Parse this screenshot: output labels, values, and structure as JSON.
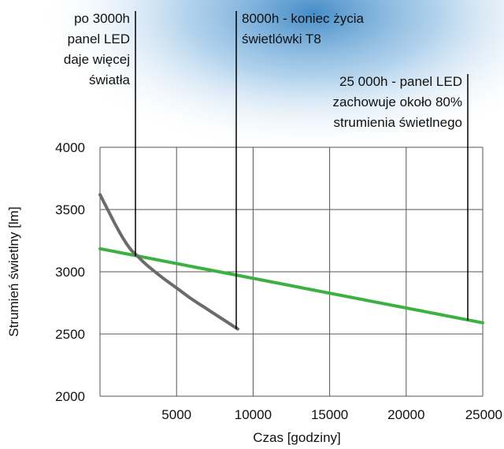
{
  "colors": {
    "background_accent": "#4a90c8",
    "grid": "#555555",
    "led_panel_line": "#3cb043",
    "t8_line": "#6b6b6b"
  },
  "chart_data": {
    "type": "line",
    "title": "",
    "xlabel": "Czas [godziny]",
    "ylabel": "Strumień świetlny [lm]",
    "xlim": [
      0,
      25000
    ],
    "ylim": [
      2000,
      4000
    ],
    "x_ticks": [
      5000,
      10000,
      15000,
      20000,
      25000
    ],
    "y_ticks": [
      2000,
      2500,
      3000,
      3500,
      4000
    ],
    "grid": true,
    "series": [
      {
        "name": "",
        "color": "#3cb043",
        "x": [
          0,
          25000
        ],
        "y": [
          3185,
          2590
        ]
      },
      {
        "name": "",
        "color": "#6b6b6b",
        "x": [
          0,
          500,
          1000,
          1500,
          2000,
          2500,
          3000,
          4000,
          5000,
          6000,
          7000,
          8000,
          9000
        ],
        "y": [
          3620,
          3500,
          3380,
          3270,
          3180,
          3120,
          3060,
          2960,
          2870,
          2780,
          2700,
          2620,
          2540
        ]
      }
    ],
    "annotations": [
      {
        "x": 2300,
        "lines": [
          "po 3000h",
          "panel LED",
          "daje więcej",
          "światła"
        ],
        "align": "right"
      },
      {
        "x": 8900,
        "lines": [
          "8000h - koniec życia",
          "świetlówki T8"
        ],
        "align": "left"
      },
      {
        "x": 24000,
        "lines": [
          "25 000h - panel LED",
          "zachowuje około 80%",
          "strumienia świetlnego"
        ],
        "align": "right"
      }
    ]
  }
}
